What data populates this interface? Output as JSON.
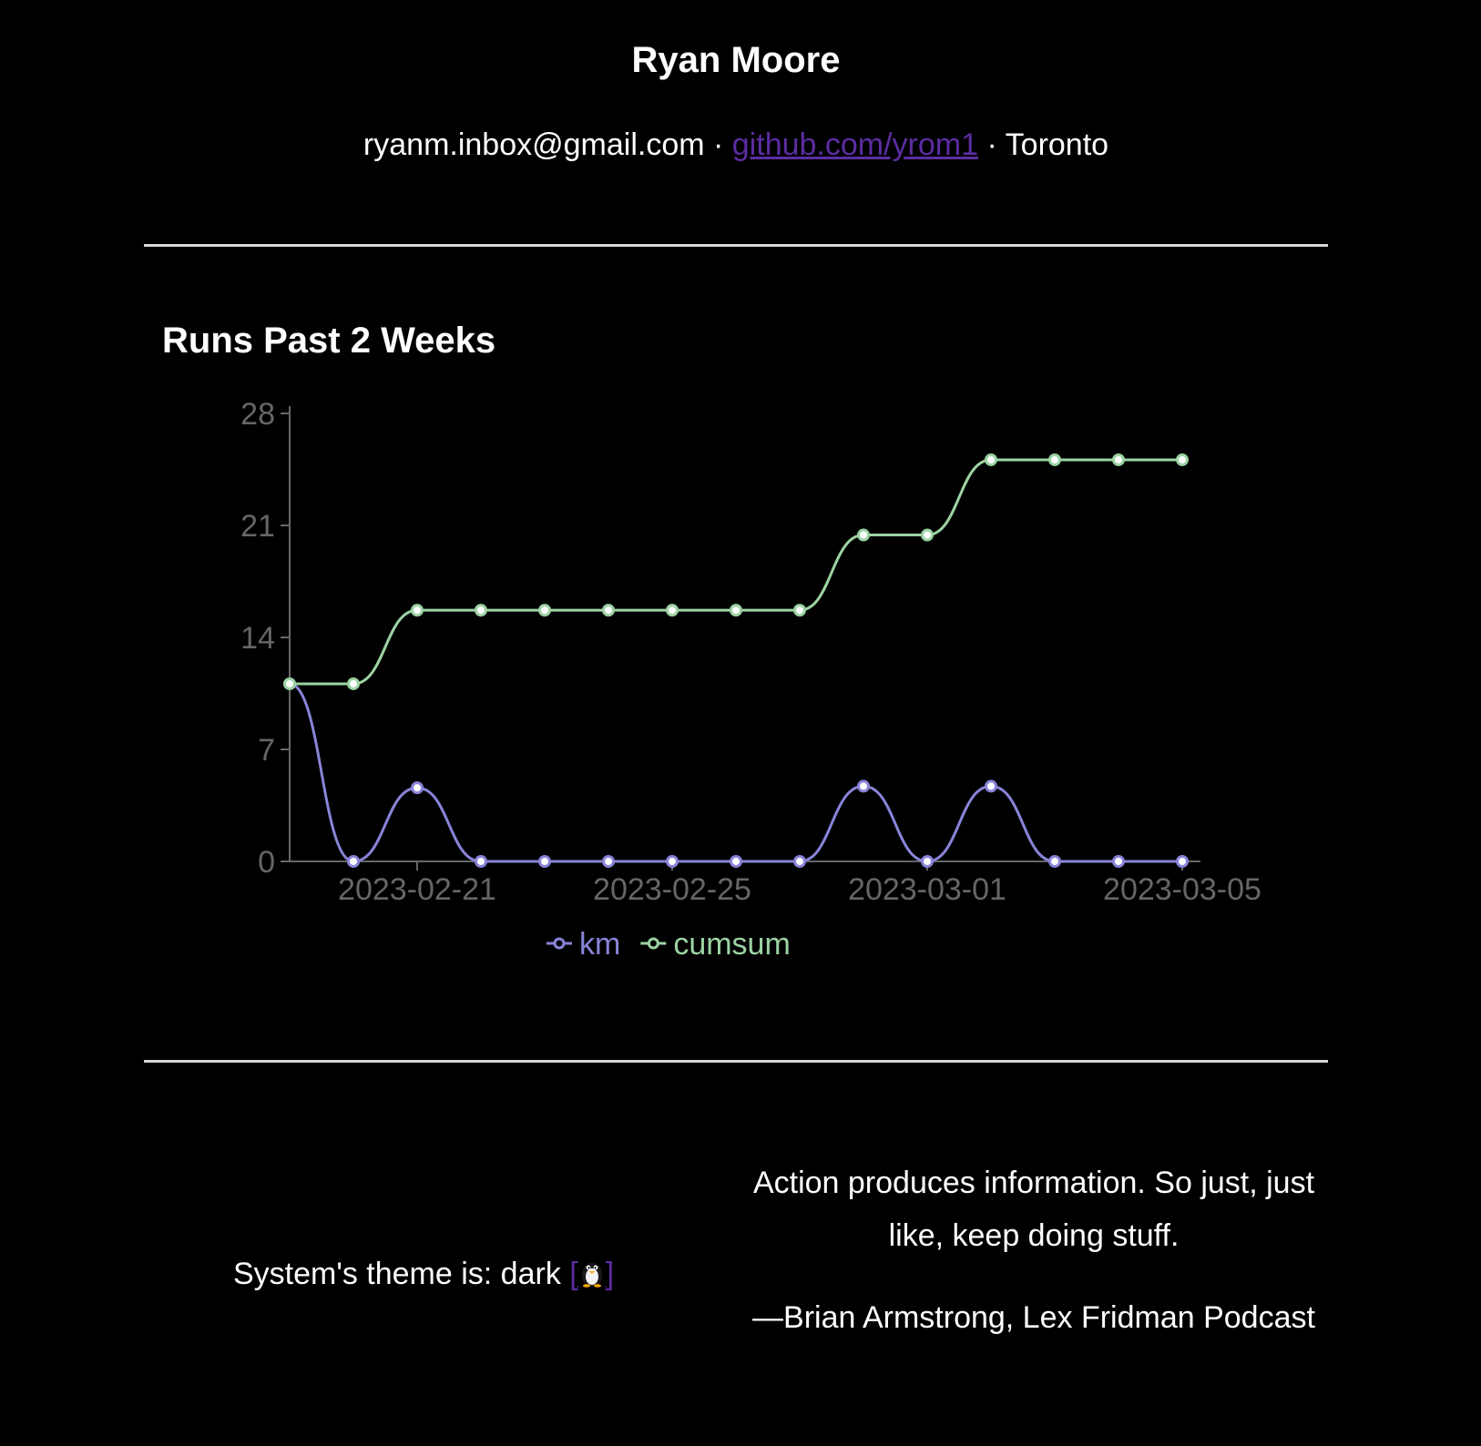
{
  "header": {
    "name": "Ryan Moore",
    "email": "ryanm.inbox@gmail.com",
    "separator": "·",
    "github_link": "github.com/yrom1",
    "location": "Toronto"
  },
  "section": {
    "title": "Runs Past 2 Weeks"
  },
  "chart_data": {
    "type": "line",
    "x": [
      "2023-02-19",
      "2023-02-20",
      "2023-02-21",
      "2023-02-22",
      "2023-02-23",
      "2023-02-24",
      "2023-02-25",
      "2023-02-26",
      "2023-02-27",
      "2023-02-28",
      "2023-03-01",
      "2023-03-02",
      "2023-03-03",
      "2023-03-04",
      "2023-03-05"
    ],
    "series": [
      {
        "name": "km",
        "color": "#8884d8",
        "values": [
          11.1,
          0,
          4.6,
          0,
          0,
          0,
          0,
          0,
          0,
          4.7,
          0,
          4.7,
          0,
          0,
          0
        ]
      },
      {
        "name": "cumsum",
        "color": "#9cd3a3",
        "values": [
          11.1,
          11.1,
          15.7,
          15.7,
          15.7,
          15.7,
          15.7,
          15.7,
          15.7,
          20.4,
          20.4,
          25.1,
          25.1,
          25.1,
          25.1
        ]
      }
    ],
    "y_ticks": [
      0,
      7,
      14,
      21,
      28
    ],
    "x_ticks": [
      "2023-02-21",
      "2023-02-25",
      "2023-03-01",
      "2023-03-05"
    ],
    "ylim": [
      0,
      28
    ],
    "legend": "bottom-center",
    "grid": false,
    "axis_color": "#666666"
  },
  "footer": {
    "theme_text": "System's theme is: dark",
    "theme_link_open": "[",
    "theme_link_close": "]",
    "theme_icon": "penguin-icon",
    "quote": "Action produces information. So just, just like, keep doing stuff.",
    "attribution": "—Brian Armstrong, Lex Fridman Podcast"
  },
  "colors": {
    "background": "#000000",
    "text": "#ffffff",
    "link": "#5b2da0"
  }
}
